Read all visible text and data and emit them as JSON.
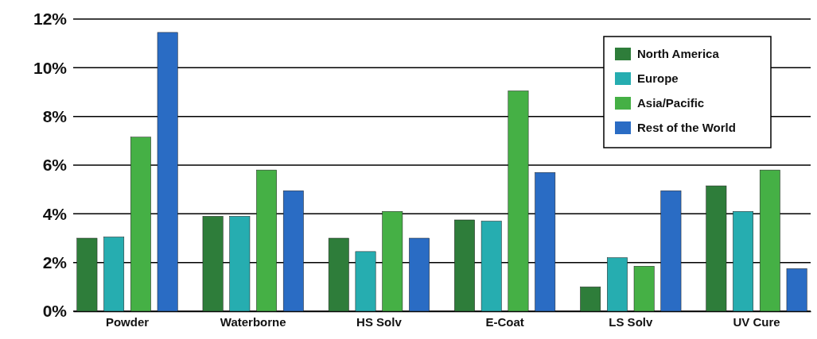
{
  "chart_data": {
    "type": "bar",
    "categories": [
      "Powder",
      "Waterborne",
      "HS Solv",
      "E-Coat",
      "LS Solv",
      "UV Cure"
    ],
    "series": [
      {
        "name": "North America",
        "color": "#2e7d3a",
        "values": [
          3.0,
          3.9,
          3.0,
          3.75,
          1.0,
          5.15
        ]
      },
      {
        "name": "Europe",
        "color": "#26adb0",
        "values": [
          3.05,
          3.9,
          2.45,
          3.7,
          2.2,
          4.1
        ]
      },
      {
        "name": "Asia/Pacific",
        "color": "#45b045",
        "values": [
          7.15,
          5.8,
          4.1,
          9.05,
          1.85,
          5.8
        ]
      },
      {
        "name": "Rest of the World",
        "color": "#2a6cc4",
        "values": [
          11.45,
          4.95,
          3.0,
          5.7,
          4.95,
          1.75
        ]
      }
    ],
    "ylim": [
      0,
      12
    ],
    "yticks": [
      {
        "value": 0,
        "label": "0%"
      },
      {
        "value": 2,
        "label": "2%"
      },
      {
        "value": 4,
        "label": "4%"
      },
      {
        "value": 6,
        "label": "6%"
      },
      {
        "value": 8,
        "label": "8%"
      },
      {
        "value": 10,
        "label": "10%"
      },
      {
        "value": 12,
        "label": "12%"
      }
    ],
    "grid": "y",
    "legend": "top right"
  }
}
